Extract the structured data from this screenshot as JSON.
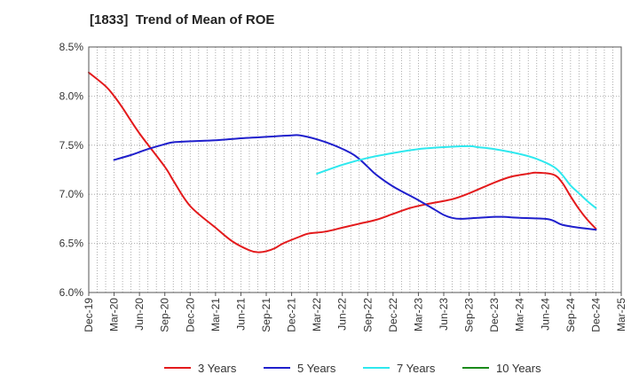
{
  "chart_data": {
    "type": "line",
    "title": "[1833]  Trend of Mean of ROE",
    "xlabel": "",
    "ylabel": "",
    "ylim": [
      6.0,
      8.5
    ],
    "y_ticks": [
      "6.0%",
      "6.5%",
      "7.0%",
      "7.5%",
      "8.0%",
      "8.5%"
    ],
    "x_ticks": [
      "Dec-19",
      "Mar-20",
      "Jun-20",
      "Sep-20",
      "Dec-20",
      "Mar-21",
      "Jun-21",
      "Sep-21",
      "Dec-21",
      "Mar-22",
      "Jun-22",
      "Sep-22",
      "Dec-22",
      "Mar-23",
      "Jun-23",
      "Sep-23",
      "Dec-23",
      "Mar-24",
      "Jun-24",
      "Sep-24",
      "Dec-24",
      "Mar-25"
    ],
    "grid": true,
    "legend_position": "bottom",
    "series": [
      {
        "name": "3 Years",
        "color": "#e31a1c",
        "points": [
          [
            "Dec-19",
            8.24
          ],
          [
            "Feb-20",
            8.1
          ],
          [
            "Mar-20",
            8.0
          ],
          [
            "Apr-20",
            7.88
          ],
          [
            "Jun-20",
            7.62
          ],
          [
            "Sep-20",
            7.28
          ],
          [
            "Oct-20",
            7.14
          ],
          [
            "Dec-20",
            6.88
          ],
          [
            "Mar-21",
            6.66
          ],
          [
            "May-21",
            6.52
          ],
          [
            "Jul-21",
            6.43
          ],
          [
            "Aug-21",
            6.41
          ],
          [
            "Sep-21",
            6.42
          ],
          [
            "Oct-21",
            6.45
          ],
          [
            "Nov-21",
            6.5
          ],
          [
            "Jan-22",
            6.57
          ],
          [
            "Feb-22",
            6.6
          ],
          [
            "Apr-22",
            6.62
          ],
          [
            "Jun-22",
            6.66
          ],
          [
            "Aug-22",
            6.7
          ],
          [
            "Oct-22",
            6.74
          ],
          [
            "Dec-22",
            6.8
          ],
          [
            "Feb-23",
            6.86
          ],
          [
            "Apr-23",
            6.9
          ],
          [
            "Jul-23",
            6.95
          ],
          [
            "Sep-23",
            7.01
          ],
          [
            "Dec-23",
            7.12
          ],
          [
            "Feb-24",
            7.18
          ],
          [
            "Apr-24",
            7.21
          ],
          [
            "May-24",
            7.22
          ],
          [
            "Jul-24",
            7.2
          ],
          [
            "Aug-24",
            7.12
          ],
          [
            "Sep-24",
            6.98
          ],
          [
            "Oct-24",
            6.85
          ],
          [
            "Nov-24",
            6.74
          ],
          [
            "Dec-24",
            6.65
          ]
        ]
      },
      {
        "name": "5 Years",
        "color": "#1f1fcc",
        "points": [
          [
            "Mar-20",
            7.35
          ],
          [
            "May-20",
            7.4
          ],
          [
            "Jul-20",
            7.46
          ],
          [
            "Sep-20",
            7.51
          ],
          [
            "Oct-20",
            7.53
          ],
          [
            "Dec-20",
            7.54
          ],
          [
            "Mar-21",
            7.55
          ],
          [
            "Jun-21",
            7.57
          ],
          [
            "Aug-21",
            7.58
          ],
          [
            "Oct-21",
            7.59
          ],
          [
            "Dec-21",
            7.6
          ],
          [
            "Jan-22",
            7.6
          ],
          [
            "Mar-22",
            7.56
          ],
          [
            "May-22",
            7.5
          ],
          [
            "Jul-22",
            7.42
          ],
          [
            "Aug-22",
            7.36
          ],
          [
            "Sep-22",
            7.28
          ],
          [
            "Oct-22",
            7.2
          ],
          [
            "Dec-22",
            7.08
          ],
          [
            "Mar-23",
            6.94
          ],
          [
            "May-23",
            6.84
          ],
          [
            "Jun-23",
            6.79
          ],
          [
            "Jul-23",
            6.76
          ],
          [
            "Aug-23",
            6.75
          ],
          [
            "Oct-23",
            6.76
          ],
          [
            "Dec-23",
            6.77
          ],
          [
            "Jan-24",
            6.77
          ],
          [
            "Mar-24",
            6.76
          ],
          [
            "Jun-24",
            6.75
          ],
          [
            "Jul-24",
            6.73
          ],
          [
            "Aug-24",
            6.69
          ],
          [
            "Oct-24",
            6.66
          ],
          [
            "Dec-24",
            6.64
          ]
        ]
      },
      {
        "name": "7 Years",
        "color": "#2ee8ee",
        "points": [
          [
            "Mar-22",
            7.21
          ],
          [
            "Jun-22",
            7.3
          ],
          [
            "Sep-22",
            7.37
          ],
          [
            "Dec-22",
            7.42
          ],
          [
            "Mar-23",
            7.46
          ],
          [
            "Jun-23",
            7.48
          ],
          [
            "Sep-23",
            7.49
          ],
          [
            "Oct-23",
            7.48
          ],
          [
            "Dec-23",
            7.46
          ],
          [
            "Mar-24",
            7.41
          ],
          [
            "May-24",
            7.36
          ],
          [
            "Jul-24",
            7.28
          ],
          [
            "Aug-24",
            7.2
          ],
          [
            "Sep-24",
            7.09
          ],
          [
            "Oct-24",
            7.01
          ],
          [
            "Nov-24",
            6.93
          ],
          [
            "Dec-24",
            6.86
          ]
        ]
      },
      {
        "name": "10 Years",
        "color": "#1a8a1a",
        "points": []
      }
    ]
  }
}
